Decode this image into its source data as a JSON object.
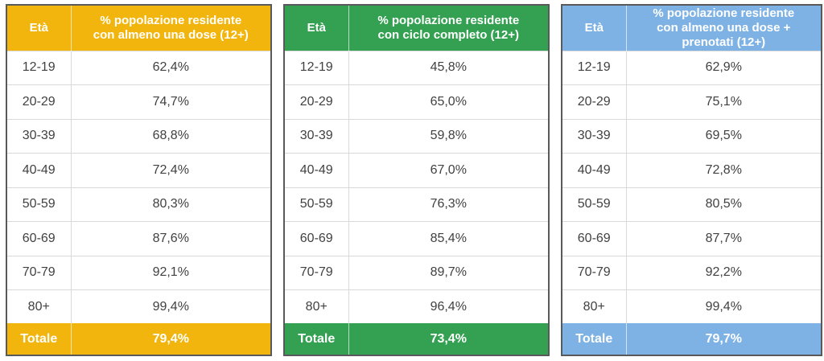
{
  "tables": [
    {
      "accent": "#F2B50D",
      "header": {
        "age": "Età",
        "value": "% popolazione residente\ncon almeno una dose (12+)"
      },
      "rows": [
        {
          "age": "12-19",
          "value": "62,4%"
        },
        {
          "age": "20-29",
          "value": "74,7%"
        },
        {
          "age": "30-39",
          "value": "68,8%"
        },
        {
          "age": "40-49",
          "value": "72,4%"
        },
        {
          "age": "50-59",
          "value": "80,3%"
        },
        {
          "age": "60-69",
          "value": "87,6%"
        },
        {
          "age": "70-79",
          "value": "92,1%"
        },
        {
          "age": "80+",
          "value": "99,4%"
        }
      ],
      "total": {
        "label": "Totale",
        "value": "79,4%"
      }
    },
    {
      "accent": "#34A152",
      "header": {
        "age": "Età",
        "value": "% popolazione residente\ncon ciclo completo (12+)"
      },
      "rows": [
        {
          "age": "12-19",
          "value": "45,8%"
        },
        {
          "age": "20-29",
          "value": "65,0%"
        },
        {
          "age": "30-39",
          "value": "59,8%"
        },
        {
          "age": "40-49",
          "value": "67,0%"
        },
        {
          "age": "50-59",
          "value": "76,3%"
        },
        {
          "age": "60-69",
          "value": "85,4%"
        },
        {
          "age": "70-79",
          "value": "89,7%"
        },
        {
          "age": "80+",
          "value": "96,4%"
        }
      ],
      "total": {
        "label": "Totale",
        "value": "73,4%"
      }
    },
    {
      "accent": "#7EB2E4",
      "header": {
        "age": "Età",
        "value": "% popolazione residente\ncon almeno una dose +\nprenotati (12+)"
      },
      "rows": [
        {
          "age": "12-19",
          "value": "62,9%"
        },
        {
          "age": "20-29",
          "value": "75,1%"
        },
        {
          "age": "30-39",
          "value": "69,5%"
        },
        {
          "age": "40-49",
          "value": "72,8%"
        },
        {
          "age": "50-59",
          "value": "80,5%"
        },
        {
          "age": "60-69",
          "value": "87,7%"
        },
        {
          "age": "70-79",
          "value": "92,2%"
        },
        {
          "age": "80+",
          "value": "99,4%"
        }
      ],
      "total": {
        "label": "Totale",
        "value": "79,7%"
      }
    }
  ],
  "colors": {
    "first_dose_accent": "#F2B50D",
    "full_cycle_accent": "#34A152",
    "dose_plus_booked_accent": "#7EB2E4",
    "body_text": "#414141",
    "outer_border": "#59595B",
    "row_divider": "#D9D9D9"
  }
}
